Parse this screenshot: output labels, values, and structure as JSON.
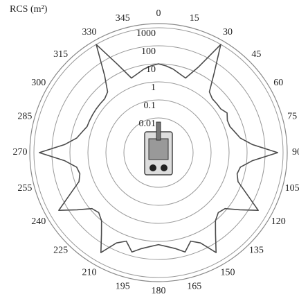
{
  "chart_data": {
    "type": "polar",
    "title": "RCS (m²)",
    "radial_scale": "log",
    "rlim": [
      0.01,
      1000
    ],
    "rticks": [
      0.01,
      0.1,
      1,
      10,
      100,
      1000
    ],
    "angle_ticks": [
      0,
      15,
      30,
      45,
      60,
      75,
      90,
      105,
      120,
      135,
      150,
      165,
      180,
      195,
      210,
      225,
      240,
      255,
      270,
      285,
      300,
      315,
      330,
      345
    ],
    "color": "#4a4a4a",
    "grid": true,
    "x": [
      0,
      5,
      10,
      15,
      20,
      25,
      30,
      35,
      40,
      45,
      50,
      55,
      60,
      65,
      70,
      75,
      80,
      85,
      90,
      95,
      100,
      105,
      110,
      115,
      120,
      125,
      130,
      135,
      140,
      145,
      150,
      155,
      160,
      165,
      170,
      175,
      180,
      185,
      190,
      195,
      200,
      205,
      210,
      215,
      220,
      225,
      230,
      235,
      240,
      245,
      250,
      255,
      260,
      265,
      270,
      275,
      280,
      285,
      290,
      295,
      300,
      305,
      310,
      315,
      320,
      325,
      330,
      335,
      340,
      345,
      350,
      355
    ],
    "values": [
      10,
      8,
      6,
      4,
      3,
      20,
      1000,
      30,
      3,
      2,
      2,
      2,
      3,
      2,
      2,
      3,
      5,
      20,
      500,
      20,
      5,
      4,
      6,
      30,
      300,
      40,
      8,
      6,
      10,
      40,
      300,
      40,
      20,
      60,
      30,
      20,
      15,
      20,
      30,
      60,
      20,
      40,
      300,
      40,
      10,
      6,
      8,
      40,
      300,
      30,
      6,
      4,
      5,
      20,
      500,
      20,
      5,
      3,
      2,
      2,
      2,
      2,
      2,
      2,
      3,
      20,
      1000,
      30,
      3,
      4,
      6,
      8
    ]
  }
}
